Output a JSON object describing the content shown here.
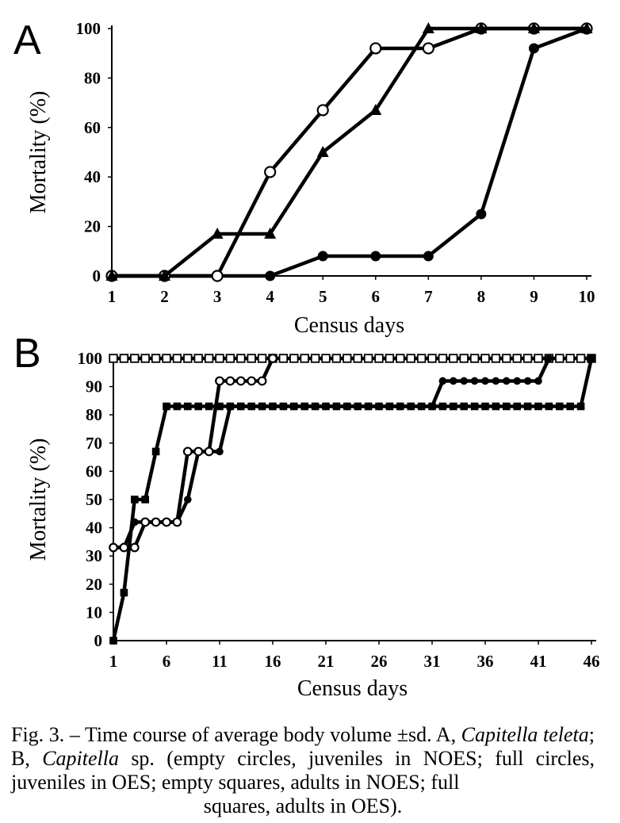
{
  "chart_data": [
    {
      "panel": "A",
      "type": "line",
      "xlabel": "Census days",
      "ylabel": "Mortality (%)",
      "x": [
        1,
        2,
        3,
        4,
        5,
        6,
        7,
        8,
        9,
        10
      ],
      "xlim": [
        1,
        10
      ],
      "ylim": [
        0,
        100
      ],
      "xticks": [
        1,
        2,
        3,
        4,
        5,
        6,
        7,
        8,
        9,
        10
      ],
      "yticks": [
        0,
        20,
        40,
        60,
        80,
        100
      ],
      "series": [
        {
          "marker": "open-circle",
          "points": [
            [
              1,
              0
            ],
            [
              2,
              0
            ],
            [
              3,
              0
            ],
            [
              4,
              42
            ],
            [
              5,
              67
            ],
            [
              6,
              92
            ],
            [
              7,
              92
            ],
            [
              8,
              100
            ],
            [
              9,
              100
            ],
            [
              10,
              100
            ]
          ]
        },
        {
          "marker": "triangle",
          "points": [
            [
              1,
              0
            ],
            [
              2,
              0
            ],
            [
              3,
              17
            ],
            [
              4,
              17
            ],
            [
              5,
              50
            ],
            [
              6,
              67
            ],
            [
              7,
              100
            ],
            [
              8,
              100
            ],
            [
              9,
              100
            ],
            [
              10,
              100
            ]
          ]
        },
        {
          "marker": "filled-circle",
          "points": [
            [
              1,
              0
            ],
            [
              2,
              0
            ],
            [
              3,
              0
            ],
            [
              4,
              0
            ],
            [
              5,
              8
            ],
            [
              6,
              8
            ],
            [
              7,
              8
            ],
            [
              8,
              25
            ],
            [
              9,
              92
            ],
            [
              10,
              100
            ]
          ]
        }
      ]
    },
    {
      "panel": "B",
      "type": "line",
      "xlabel": "Census days",
      "ylabel": "Mortality (%)",
      "xlim": [
        1,
        46
      ],
      "ylim": [
        0,
        100
      ],
      "xticks": [
        1,
        6,
        11,
        16,
        21,
        26,
        31,
        36,
        41,
        46
      ],
      "yticks": [
        0,
        10,
        20,
        30,
        40,
        50,
        60,
        70,
        80,
        90,
        100
      ],
      "series": [
        {
          "marker": "open-square",
          "points": [
            [
              1,
              100
            ],
            [
              2,
              100
            ],
            [
              3,
              100
            ],
            [
              4,
              100
            ],
            [
              5,
              100
            ],
            [
              6,
              100
            ],
            [
              7,
              100
            ],
            [
              8,
              100
            ],
            [
              9,
              100
            ],
            [
              10,
              100
            ],
            [
              11,
              100
            ],
            [
              12,
              100
            ],
            [
              13,
              100
            ],
            [
              14,
              100
            ],
            [
              15,
              100
            ],
            [
              16,
              100
            ],
            [
              17,
              100
            ],
            [
              18,
              100
            ],
            [
              19,
              100
            ],
            [
              20,
              100
            ],
            [
              21,
              100
            ],
            [
              22,
              100
            ],
            [
              23,
              100
            ],
            [
              24,
              100
            ],
            [
              25,
              100
            ],
            [
              26,
              100
            ],
            [
              27,
              100
            ],
            [
              28,
              100
            ],
            [
              29,
              100
            ],
            [
              30,
              100
            ],
            [
              31,
              100
            ],
            [
              32,
              100
            ],
            [
              33,
              100
            ],
            [
              34,
              100
            ],
            [
              35,
              100
            ],
            [
              36,
              100
            ],
            [
              37,
              100
            ],
            [
              38,
              100
            ],
            [
              39,
              100
            ],
            [
              40,
              100
            ],
            [
              41,
              100
            ],
            [
              42,
              100
            ],
            [
              43,
              100
            ],
            [
              44,
              100
            ],
            [
              45,
              100
            ],
            [
              46,
              100
            ]
          ]
        },
        {
          "marker": "open-circle",
          "points": [
            [
              1,
              33
            ],
            [
              2,
              33
            ],
            [
              3,
              33
            ],
            [
              4,
              42
            ],
            [
              5,
              42
            ],
            [
              6,
              42
            ],
            [
              7,
              42
            ],
            [
              8,
              67
            ],
            [
              9,
              67
            ],
            [
              10,
              67
            ],
            [
              11,
              92
            ],
            [
              12,
              92
            ],
            [
              13,
              92
            ],
            [
              14,
              92
            ],
            [
              15,
              92
            ],
            [
              16,
              100
            ]
          ]
        },
        {
          "marker": "filled-circle",
          "points": [
            [
              1,
              33
            ],
            [
              2,
              33
            ],
            [
              3,
              42
            ],
            [
              4,
              42
            ],
            [
              5,
              42
            ],
            [
              6,
              42
            ],
            [
              7,
              42
            ],
            [
              8,
              50
            ],
            [
              9,
              67
            ],
            [
              10,
              67
            ],
            [
              11,
              67
            ],
            [
              12,
              83
            ],
            [
              13,
              83
            ],
            [
              14,
              83
            ],
            [
              15,
              83
            ],
            [
              16,
              83
            ],
            [
              17,
              83
            ],
            [
              18,
              83
            ],
            [
              19,
              83
            ],
            [
              20,
              83
            ],
            [
              21,
              83
            ],
            [
              22,
              83
            ],
            [
              23,
              83
            ],
            [
              24,
              83
            ],
            [
              25,
              83
            ],
            [
              26,
              83
            ],
            [
              27,
              83
            ],
            [
              28,
              83
            ],
            [
              29,
              83
            ],
            [
              30,
              83
            ],
            [
              31,
              83
            ],
            [
              32,
              92
            ],
            [
              33,
              92
            ],
            [
              34,
              92
            ],
            [
              35,
              92
            ],
            [
              36,
              92
            ],
            [
              37,
              92
            ],
            [
              38,
              92
            ],
            [
              39,
              92
            ],
            [
              40,
              92
            ],
            [
              41,
              92
            ],
            [
              42,
              100
            ]
          ]
        },
        {
          "marker": "filled-square",
          "points": [
            [
              1,
              0
            ],
            [
              2,
              17
            ],
            [
              3,
              50
            ],
            [
              4,
              50
            ],
            [
              5,
              67
            ],
            [
              6,
              83
            ],
            [
              7,
              83
            ],
            [
              8,
              83
            ],
            [
              9,
              83
            ],
            [
              10,
              83
            ],
            [
              11,
              83
            ],
            [
              12,
              83
            ],
            [
              13,
              83
            ],
            [
              14,
              83
            ],
            [
              15,
              83
            ],
            [
              16,
              83
            ],
            [
              17,
              83
            ],
            [
              18,
              83
            ],
            [
              19,
              83
            ],
            [
              20,
              83
            ],
            [
              21,
              83
            ],
            [
              22,
              83
            ],
            [
              23,
              83
            ],
            [
              24,
              83
            ],
            [
              25,
              83
            ],
            [
              26,
              83
            ],
            [
              27,
              83
            ],
            [
              28,
              83
            ],
            [
              29,
              83
            ],
            [
              30,
              83
            ],
            [
              31,
              83
            ],
            [
              32,
              83
            ],
            [
              33,
              83
            ],
            [
              34,
              83
            ],
            [
              35,
              83
            ],
            [
              36,
              83
            ],
            [
              37,
              83
            ],
            [
              38,
              83
            ],
            [
              39,
              83
            ],
            [
              40,
              83
            ],
            [
              41,
              83
            ],
            [
              42,
              83
            ],
            [
              43,
              83
            ],
            [
              44,
              83
            ],
            [
              45,
              83
            ],
            [
              46,
              100
            ]
          ]
        }
      ]
    }
  ],
  "caption": {
    "prefix": "Fig. 3. – Time course of average body volume ±sd. A, ",
    "species_a": "Capitella teleta",
    "mid": "; B, ",
    "species_b": "Capitella",
    "suffix": " sp. (empty circles, juveniles in NOES; full circles, juveniles in OES; empty squares, adults in NOES; full",
    "last_line": "squares, adults in OES)."
  }
}
